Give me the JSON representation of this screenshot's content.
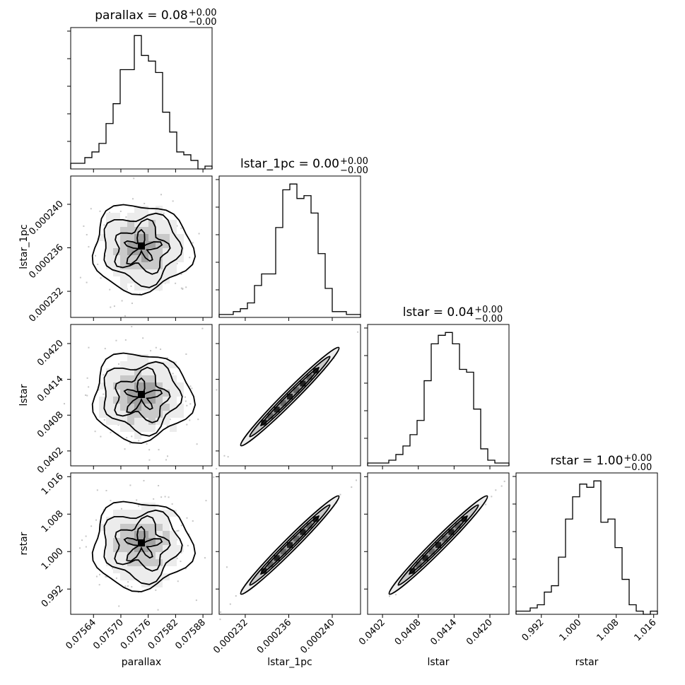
{
  "chart_data": {
    "type": "corner",
    "parameters": [
      "parallax",
      "lstar_1pc",
      "lstar",
      "rstar"
    ],
    "titles": [
      {
        "param": "parallax",
        "text": "parallax = 0.08",
        "sup": "+0.00",
        "sub": "−0.00"
      },
      {
        "param": "lstar_1pc",
        "text": "lstar_1pc = 0.00",
        "sup": "+0.00",
        "sub": "−0.00"
      },
      {
        "param": "lstar",
        "text": "lstar = 0.04",
        "sup": "+0.00",
        "sub": "−0.00"
      },
      {
        "param": "rstar",
        "text": "rstar = 1.00",
        "sup": "+0.00",
        "sub": "−0.00"
      }
    ],
    "axis_labels": {
      "x": [
        "parallax",
        "lstar_1pc",
        "lstar",
        "rstar"
      ],
      "y": [
        "lstar_1pc",
        "lstar",
        "rstar"
      ]
    },
    "ranges": [
      [
        0.07559,
        0.0759
      ],
      [
        0.0002296,
        0.0002426
      ],
      [
        0.03995,
        0.04232
      ],
      [
        0.9866,
        1.0168
      ]
    ],
    "ticks": [
      {
        "values": [
          0.07564,
          0.0757,
          0.07576,
          0.07582,
          0.07588
        ],
        "labels": [
          "0.07564",
          "0.07570",
          "0.07576",
          "0.07582",
          "0.07588"
        ]
      },
      {
        "values": [
          0.000232,
          0.000236,
          0.00024
        ],
        "labels": [
          "0.000232",
          "0.000236",
          "0.000240"
        ]
      },
      {
        "values": [
          0.0402,
          0.0408,
          0.0414,
          0.042
        ],
        "labels": [
          "0.0402",
          "0.0408",
          "0.0414",
          "0.0420"
        ]
      },
      {
        "values": [
          0.992,
          1.0,
          1.008,
          1.016
        ],
        "labels": [
          "0.992",
          "1.000",
          "1.008",
          "1.016"
        ]
      }
    ],
    "histograms": [
      {
        "param": "parallax",
        "counts": [
          2,
          2,
          4,
          6,
          9,
          16,
          23,
          35,
          35,
          47,
          40,
          38,
          34,
          20,
          13,
          6,
          5,
          3,
          0,
          1
        ]
      },
      {
        "param": "lstar_1pc",
        "counts": [
          1,
          1,
          2,
          3,
          5,
          11,
          15,
          15,
          31,
          44,
          46,
          41,
          42,
          36,
          22,
          10,
          2,
          2,
          1,
          1
        ]
      },
      {
        "param": "lstar",
        "counts": [
          1,
          1,
          1,
          2,
          4,
          7,
          11,
          16,
          30,
          43,
          46,
          47,
          43,
          34,
          33,
          20,
          6,
          2,
          1,
          1
        ]
      },
      {
        "param": "rstar",
        "counts": [
          1,
          1,
          2,
          3,
          7,
          9,
          18,
          30,
          37,
          41,
          40,
          42,
          29,
          30,
          21,
          11,
          3,
          1,
          0,
          1
        ]
      }
    ],
    "correlations": [
      {
        "x": "parallax",
        "y": "lstar_1pc",
        "corr": 0.0
      },
      {
        "x": "parallax",
        "y": "lstar",
        "corr": 0.0
      },
      {
        "x": "parallax",
        "y": "rstar",
        "corr": 0.0
      },
      {
        "x": "lstar_1pc",
        "y": "lstar",
        "corr": 0.99
      },
      {
        "x": "lstar_1pc",
        "y": "rstar",
        "corr": 0.98
      },
      {
        "x": "lstar",
        "y": "rstar",
        "corr": 0.99
      }
    ],
    "grid": false
  }
}
